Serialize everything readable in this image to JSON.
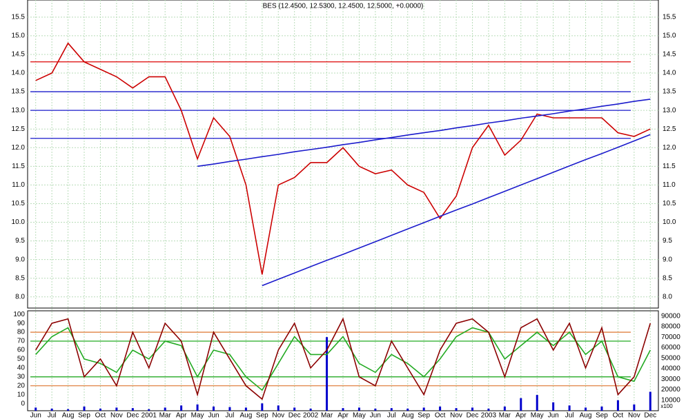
{
  "chart_data": [
    {
      "type": "line",
      "title": "BES (12.4500, 12.5300, 12.4500, 12.5000, +0.0000)",
      "ylim": [
        7.7,
        15.7
      ],
      "yticks": [
        {
          "value": 8,
          "label": "8.0"
        },
        {
          "value": 8.5,
          "label": "8.5"
        },
        {
          "value": 9,
          "label": "9.0"
        },
        {
          "value": 9.5,
          "label": "9.5"
        },
        {
          "value": 10,
          "label": "10.0"
        },
        {
          "value": 10.5,
          "label": "10.5"
        },
        {
          "value": 11,
          "label": "11.0"
        },
        {
          "value": 11.5,
          "label": "11.5"
        },
        {
          "value": 12,
          "label": "12.0"
        },
        {
          "value": 12.5,
          "label": "12.5"
        },
        {
          "value": 13,
          "label": "13.0"
        },
        {
          "value": 13.5,
          "label": "13.5"
        },
        {
          "value": 14,
          "label": "14.0"
        },
        {
          "value": 14.5,
          "label": "14.5"
        },
        {
          "value": 15,
          "label": "15.0"
        },
        {
          "value": 15.5,
          "label": "15.5"
        }
      ],
      "grid": true,
      "series": [
        {
          "color": "#cc0000",
          "values": [
            13.8,
            14.0,
            14.8,
            14.3,
            14.1,
            13.9,
            13.6,
            13.9,
            13.9,
            13.0,
            11.7,
            12.8,
            12.3,
            11.0,
            8.6,
            11.0,
            11.2,
            11.6,
            11.6,
            12.0,
            11.5,
            11.3,
            11.4,
            11.0,
            10.8,
            10.1,
            10.7,
            12.0,
            12.6,
            11.8,
            12.2,
            12.9,
            12.8,
            12.8,
            12.8,
            12.8,
            12.4,
            12.3,
            12.5
          ]
        },
        {
          "color": "#1a1acc",
          "values": [
            null,
            null,
            null,
            null,
            null,
            null,
            null,
            null,
            null,
            null,
            11.5,
            11.56,
            11.63,
            11.69,
            11.76,
            11.82,
            11.89,
            11.95,
            12.01,
            12.08,
            12.14,
            12.21,
            12.27,
            12.34,
            12.4,
            12.46,
            12.53,
            12.59,
            12.66,
            12.72,
            12.79,
            12.85,
            12.91,
            12.98,
            13.04,
            13.11,
            13.17,
            13.24,
            13.3
          ]
        },
        {
          "color": "#1a1acc",
          "values": [
            null,
            null,
            null,
            null,
            null,
            null,
            null,
            null,
            null,
            null,
            null,
            null,
            null,
            null,
            8.3,
            8.47,
            8.64,
            8.81,
            8.98,
            9.14,
            9.31,
            9.48,
            9.65,
            9.82,
            9.99,
            10.16,
            10.33,
            10.49,
            10.66,
            10.83,
            11.0,
            11.17,
            11.34,
            11.51,
            11.68,
            11.84,
            12.01,
            12.18,
            12.35
          ]
        }
      ],
      "hlines": [
        {
          "value": 14.3,
          "color": "#dd0000"
        },
        {
          "value": 13.5,
          "color": "#1a1acc"
        },
        {
          "value": 13.0,
          "color": "#1a1acc"
        },
        {
          "value": 12.25,
          "color": "#1a1acc"
        }
      ]
    },
    {
      "type": "line",
      "categories": [
        "Jun",
        "Jul",
        "Aug",
        "Sep",
        "Oct",
        "Nov",
        "Dec",
        "2001",
        "Mar",
        "Apr",
        "May",
        "Jun",
        "Jul",
        "Aug",
        "Sep",
        "Nov",
        "Dec",
        "2002",
        "Mar",
        "Apr",
        "May",
        "Jun",
        "Jul",
        "Aug",
        "Sep",
        "Oct",
        "Nov",
        "Dec",
        "2003",
        "Mar",
        "Apr",
        "May",
        "Jun",
        "Jul",
        "Aug",
        "Sep",
        "Oct",
        "Nov",
        "Dec"
      ],
      "ylim": [
        -8,
        104
      ],
      "yticks": [
        0,
        10,
        20,
        30,
        40,
        50,
        60,
        70,
        80,
        90,
        100
      ],
      "y2lim": [
        0,
        95000
      ],
      "y2ticks": [
        10000,
        20000,
        30000,
        40000,
        50000,
        60000,
        70000,
        80000,
        90000
      ],
      "y2label": "x100",
      "series": [
        {
          "color": "#0000cc",
          "axis": "y2",
          "type": "bar",
          "values": [
            3000,
            2000,
            1500,
            4000,
            2000,
            3000,
            2500,
            1500,
            3000,
            5000,
            6000,
            4000,
            3500,
            3000,
            7000,
            5000,
            3000,
            2000,
            70000,
            2500,
            3000,
            2000,
            2500,
            2000,
            3000,
            4000,
            2500,
            3000,
            2000,
            4000,
            12000,
            15000,
            8000,
            5000,
            3000,
            4000,
            10000,
            6000,
            18000
          ]
        },
        {
          "color": "#22aa22",
          "values": [
            55,
            75,
            85,
            50,
            45,
            35,
            60,
            50,
            70,
            65,
            30,
            60,
            55,
            30,
            15,
            45,
            75,
            55,
            55,
            75,
            45,
            35,
            55,
            45,
            30,
            50,
            75,
            85,
            80,
            50,
            65,
            80,
            65,
            80,
            55,
            70,
            30,
            25,
            60
          ]
        },
        {
          "color": "#8b0000",
          "values": [
            60,
            90,
            95,
            30,
            50,
            20,
            80,
            40,
            90,
            70,
            10,
            80,
            50,
            20,
            5,
            60,
            90,
            40,
            60,
            95,
            30,
            20,
            70,
            40,
            10,
            60,
            90,
            95,
            80,
            30,
            85,
            95,
            60,
            90,
            40,
            85,
            10,
            30,
            90
          ]
        }
      ],
      "hlines": [
        {
          "value": 80,
          "color": "#e08040"
        },
        {
          "value": 70,
          "color": "#22aa22"
        },
        {
          "value": 30,
          "color": "#22aa22"
        },
        {
          "value": 20,
          "color": "#e08040"
        }
      ]
    }
  ]
}
